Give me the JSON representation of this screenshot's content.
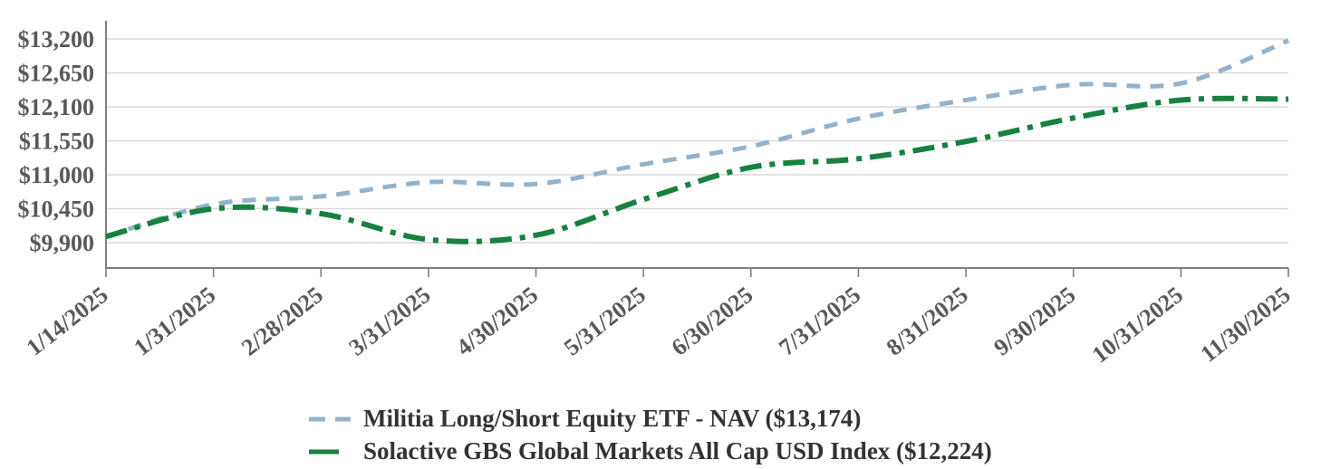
{
  "chart_data": {
    "type": "line",
    "title": "",
    "xlabel": "",
    "ylabel": "",
    "x": [
      "1/14/2025",
      "1/31/2025",
      "2/28/2025",
      "3/31/2025",
      "4/30/2025",
      "5/31/2025",
      "6/30/2025",
      "7/31/2025",
      "8/31/2025",
      "9/30/2025",
      "10/31/2025",
      "11/30/2025"
    ],
    "series": [
      {
        "name": "Militia Long/Short Equity ETF - NAV ($13,174)",
        "final_value_label": "$13,174",
        "values": [
          10000,
          10520,
          10650,
          10880,
          10850,
          11170,
          11460,
          11910,
          12210,
          12460,
          12480,
          13174
        ],
        "color": "#93b3cc",
        "line_style": "dashed",
        "dash": "15 11",
        "width": 5
      },
      {
        "name": "Solactive GBS Global Markets All Cap USD Index ($12,224)",
        "final_value_label": "$12,224",
        "values": [
          10000,
          10450,
          10370,
          9950,
          10020,
          10600,
          11120,
          11260,
          11540,
          11920,
          12210,
          12224
        ],
        "color": "#17813f",
        "line_style": "dash-dot",
        "dash": "24 9 6 9",
        "width": 6
      }
    ],
    "y_ticks": [
      {
        "value": 13200,
        "label": "$13,200"
      },
      {
        "value": 12650,
        "label": "$12,650"
      },
      {
        "value": 12100,
        "label": "$12,100"
      },
      {
        "value": 11550,
        "label": "$11,550"
      },
      {
        "value": 11000,
        "label": "$11,000"
      },
      {
        "value": 10450,
        "label": "$10,450"
      },
      {
        "value": 9900,
        "label": "$9,900"
      }
    ],
    "ylim": [
      9490,
      13490
    ],
    "grid": true,
    "grid_color": "#d9d9d9",
    "axis_color": "#7f7f7f",
    "tick_label_color": "#595959",
    "legend_position": "bottom",
    "x_label_rotation_deg": -38
  }
}
